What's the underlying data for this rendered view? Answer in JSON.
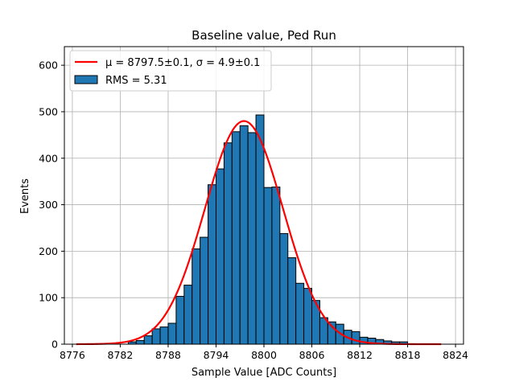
{
  "chart_data": {
    "type": "bar",
    "title": "Baseline value, Ped Run",
    "xlabel": "Sample Value [ADC Counts]",
    "ylabel": "Events",
    "xlim": [
      8775,
      8825
    ],
    "ylim": [
      0,
      640
    ],
    "xticks": [
      8776,
      8782,
      8788,
      8794,
      8800,
      8806,
      8812,
      8818,
      8824
    ],
    "yticks": [
      0,
      100,
      200,
      300,
      400,
      500,
      600
    ],
    "grid": true,
    "legend_position": "top-left",
    "histogram": {
      "name": "RMS = 5.31",
      "color": "#1f77b4",
      "bin_width": 1,
      "bin_starts": [
        8783,
        8784,
        8785,
        8786,
        8787,
        8788,
        8789,
        8790,
        8791,
        8792,
        8793,
        8794,
        8795,
        8796,
        8797,
        8798,
        8799,
        8800,
        8801,
        8802,
        8803,
        8804,
        8805,
        8806,
        8807,
        8808,
        8809,
        8810,
        8811,
        8812,
        8813,
        8814,
        8815,
        8816,
        8817,
        8818
      ],
      "values": [
        5,
        8,
        18,
        33,
        37,
        45,
        103,
        127,
        205,
        230,
        343,
        377,
        433,
        457,
        470,
        455,
        493,
        337,
        338,
        238,
        186,
        131,
        120,
        94,
        57,
        48,
        43,
        30,
        27,
        15,
        13,
        10,
        7,
        5,
        5,
        1
      ]
    },
    "fit": {
      "name": "μ = 8797.5±0.1, σ = 4.9±0.1",
      "color": "#ff0000",
      "mu": 8797.5,
      "sigma": 4.9,
      "amplitude": 480,
      "x_range": [
        8776.5,
        8822.2
      ]
    }
  }
}
